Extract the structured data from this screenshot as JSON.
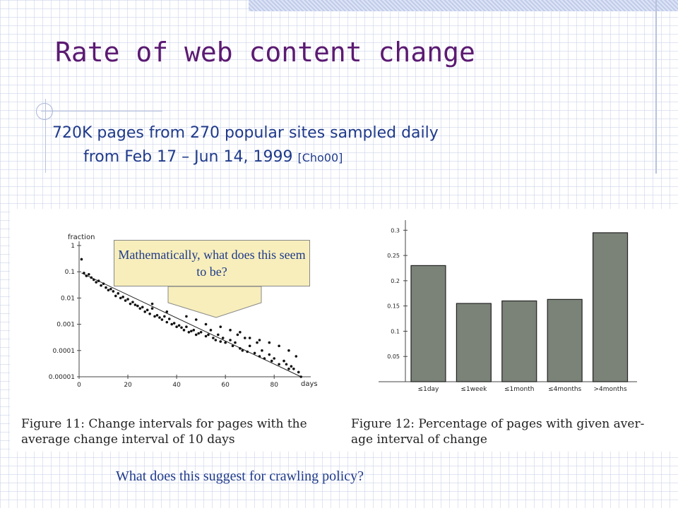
{
  "slide": {
    "title": "Rate of web content change",
    "subtitle_line1": "720K pages from 270 popular sites sampled daily",
    "subtitle_line2": "from Feb 17 – Jun 14, 1999",
    "citation": "[Cho00]",
    "callout": "Mathematically, what does this seem to be?",
    "question": "What does this suggest for crawling policy?"
  },
  "colors": {
    "title": "#5b1a72",
    "body_text": "#1f3a8a",
    "callout_fill": "#f7eebb",
    "bar_fill": "#7b8378"
  },
  "chart_data": [
    {
      "type": "scatter",
      "caption": "Figure 11: Change intervals for pages with the average change interval of 10 days",
      "caption_line1": "Figure 11:  Change intervals for pages with the",
      "caption_line2": "average change interval of 10 days",
      "ylabel": "fraction",
      "xlabel": "days",
      "y_scale": "log",
      "ylim": [
        1e-05,
        1
      ],
      "xlim": [
        0,
        95
      ],
      "x_ticks": [
        0,
        20,
        40,
        60,
        80
      ],
      "y_tick_labels": [
        "1",
        "0.1",
        "0.01",
        "0.001",
        "0.0001",
        "0.00001"
      ],
      "y_tick_values": [
        1,
        0.1,
        0.01,
        0.001,
        0.0001,
        1e-05
      ],
      "fit_line": {
        "x": [
          1,
          91
        ],
        "y": [
          0.09,
          1e-05
        ]
      },
      "points": [
        [
          1,
          0.3
        ],
        [
          2,
          0.09
        ],
        [
          3,
          0.07
        ],
        [
          4,
          0.08
        ],
        [
          5,
          0.06
        ],
        [
          6,
          0.05
        ],
        [
          7,
          0.04
        ],
        [
          8,
          0.045
        ],
        [
          9,
          0.03
        ],
        [
          10,
          0.035
        ],
        [
          11,
          0.025
        ],
        [
          12,
          0.02
        ],
        [
          13,
          0.022
        ],
        [
          14,
          0.018
        ],
        [
          15,
          0.012
        ],
        [
          16,
          0.015
        ],
        [
          17,
          0.01
        ],
        [
          18,
          0.011
        ],
        [
          19,
          0.008
        ],
        [
          20,
          0.009
        ],
        [
          21,
          0.006
        ],
        [
          22,
          0.007
        ],
        [
          23,
          0.0055
        ],
        [
          24,
          0.005
        ],
        [
          25,
          0.004
        ],
        [
          26,
          0.0045
        ],
        [
          27,
          0.003
        ],
        [
          28,
          0.0035
        ],
        [
          29,
          0.0025
        ],
        [
          30,
          0.004
        ],
        [
          31,
          0.002
        ],
        [
          32,
          0.0022
        ],
        [
          33,
          0.0018
        ],
        [
          34,
          0.0015
        ],
        [
          35,
          0.002
        ],
        [
          36,
          0.0012
        ],
        [
          37,
          0.0016
        ],
        [
          38,
          0.001
        ],
        [
          39,
          0.0011
        ],
        [
          40,
          0.0008
        ],
        [
          41,
          0.0009
        ],
        [
          42,
          0.00075
        ],
        [
          43,
          0.0006
        ],
        [
          44,
          0.0008
        ],
        [
          45,
          0.0005
        ],
        [
          46,
          0.00055
        ],
        [
          47,
          0.0006
        ],
        [
          48,
          0.0004
        ],
        [
          49,
          0.00045
        ],
        [
          50,
          0.0005
        ],
        [
          52,
          0.00035
        ],
        [
          53,
          0.0004
        ],
        [
          54,
          0.0006
        ],
        [
          55,
          0.0003
        ],
        [
          56,
          0.00025
        ],
        [
          57,
          0.0004
        ],
        [
          58,
          0.00022
        ],
        [
          59,
          0.0003
        ],
        [
          60,
          0.0002
        ],
        [
          62,
          0.00025
        ],
        [
          63,
          0.00015
        ],
        [
          64,
          0.0002
        ],
        [
          65,
          0.0004
        ],
        [
          66,
          0.00012
        ],
        [
          67,
          0.0001
        ],
        [
          68,
          0.0003
        ],
        [
          69,
          9e-05
        ],
        [
          70,
          0.00015
        ],
        [
          72,
          8e-05
        ],
        [
          73,
          0.0002
        ],
        [
          74,
          6e-05
        ],
        [
          75,
          0.0001
        ],
        [
          76,
          5e-05
        ],
        [
          78,
          7e-05
        ],
        [
          79,
          4e-05
        ],
        [
          80,
          5e-05
        ],
        [
          82,
          3e-05
        ],
        [
          84,
          4e-05
        ],
        [
          85,
          3e-05
        ],
        [
          86,
          2e-05
        ],
        [
          87,
          2.5e-05
        ],
        [
          88,
          2e-05
        ],
        [
          90,
          1.5e-05
        ],
        [
          91,
          1e-05
        ],
        [
          58,
          0.0008
        ],
        [
          62,
          0.0006
        ],
        [
          66,
          0.0005
        ],
        [
          70,
          0.0003
        ],
        [
          74,
          0.00025
        ],
        [
          78,
          0.0002
        ],
        [
          82,
          0.00015
        ],
        [
          86,
          0.0001
        ],
        [
          89,
          6e-05
        ],
        [
          48,
          0.0015
        ],
        [
          44,
          0.002
        ],
        [
          52,
          0.001
        ],
        [
          36,
          0.003
        ],
        [
          30,
          0.006
        ]
      ]
    },
    {
      "type": "bar",
      "caption": "Figure 12: Percentage of pages with given average interval of change",
      "caption_line1": "Figure 12:  Percentage of pages with given aver-",
      "caption_line2": "age interval of change",
      "categories": [
        "≤1day",
        "≤1week",
        "≤1month",
        "≤4months",
        ">4months"
      ],
      "values": [
        0.23,
        0.155,
        0.16,
        0.163,
        0.295
      ],
      "ylim": [
        0,
        0.32
      ],
      "y_ticks": [
        0.05,
        0.1,
        0.15,
        0.2,
        0.25,
        0.3
      ],
      "y_tick_labels": [
        "0.05",
        "0.1",
        "0.15",
        "0.2",
        "0.25",
        "0.3"
      ]
    }
  ]
}
